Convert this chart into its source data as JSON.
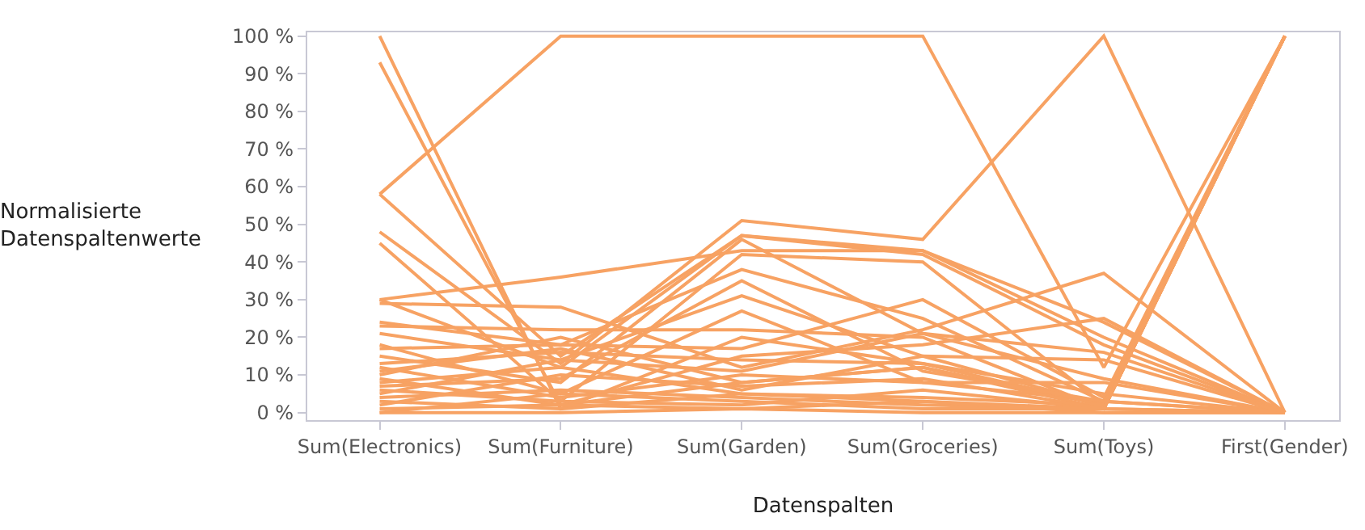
{
  "chart_data": {
    "type": "line",
    "xlabel": "Datenspalten",
    "ylabel": "Normalisierte\nDatenspaltenwerte",
    "categories": [
      "Sum(Electronics)",
      "Sum(Furniture)",
      "Sum(Garden)",
      "Sum(Groceries)",
      "Sum(Toys)",
      "First(Gender)"
    ],
    "ylim": [
      -2,
      101
    ],
    "yticks": [
      {
        "value": 0,
        "label": "0 %"
      },
      {
        "value": 10,
        "label": "10 %"
      },
      {
        "value": 20,
        "label": "20 %"
      },
      {
        "value": 30,
        "label": "30 %"
      },
      {
        "value": 40,
        "label": "40 %"
      },
      {
        "value": 50,
        "label": "50 %"
      },
      {
        "value": 60,
        "label": "60 %"
      },
      {
        "value": 70,
        "label": "70 %"
      },
      {
        "value": 80,
        "label": "80 %"
      },
      {
        "value": 90,
        "label": "90 %"
      },
      {
        "value": 100,
        "label": "100 %"
      }
    ],
    "marker": "none",
    "line_style": "solid",
    "series": [
      {
        "color": "#f7a263",
        "values": [
          58,
          100,
          100,
          100,
          12,
          100
        ]
      },
      {
        "color": "#f7a263",
        "values": [
          100,
          1,
          5,
          3,
          1,
          0
        ]
      },
      {
        "color": "#f7a263",
        "values": [
          93,
          2,
          8,
          12,
          2,
          100
        ]
      },
      {
        "color": "#f7a263",
        "values": [
          58,
          15,
          47,
          43,
          20,
          0
        ]
      },
      {
        "color": "#f7a263",
        "values": [
          48,
          13,
          51,
          46,
          100,
          0
        ]
      },
      {
        "color": "#f7a263",
        "values": [
          45,
          3,
          42,
          40,
          2,
          100
        ]
      },
      {
        "color": "#f7a263",
        "values": [
          30,
          36,
          43,
          43,
          24,
          0
        ]
      },
      {
        "color": "#f7a263",
        "values": [
          29,
          28,
          12,
          22,
          37,
          0
        ]
      },
      {
        "color": "#f7a263",
        "values": [
          30,
          12,
          47,
          42,
          18,
          0
        ]
      },
      {
        "color": "#f7a263",
        "values": [
          24,
          18,
          38,
          25,
          3,
          100
        ]
      },
      {
        "color": "#f7a263",
        "values": [
          23,
          22,
          22,
          20,
          1,
          0
        ]
      },
      {
        "color": "#f7a263",
        "values": [
          21,
          14,
          31,
          15,
          2,
          100
        ]
      },
      {
        "color": "#f7a263",
        "values": [
          18,
          5,
          27,
          8,
          3,
          0
        ]
      },
      {
        "color": "#f7a263",
        "values": [
          17,
          18,
          17,
          30,
          4,
          100
        ]
      },
      {
        "color": "#f7a263",
        "values": [
          15,
          8,
          46,
          21,
          16,
          0
        ]
      },
      {
        "color": "#f7a263",
        "values": [
          13,
          16,
          14,
          13,
          2,
          100
        ]
      },
      {
        "color": "#f7a263",
        "values": [
          12,
          4,
          10,
          8,
          8,
          0
        ]
      },
      {
        "color": "#f7a263",
        "values": [
          10,
          20,
          8,
          12,
          1,
          100
        ]
      },
      {
        "color": "#f7a263",
        "values": [
          9,
          2,
          15,
          18,
          25,
          0
        ]
      },
      {
        "color": "#f7a263",
        "values": [
          8,
          12,
          5,
          4,
          2,
          100
        ]
      },
      {
        "color": "#f7a263",
        "values": [
          7,
          9,
          35,
          11,
          3,
          0
        ]
      },
      {
        "color": "#f7a263",
        "values": [
          6,
          3,
          2,
          6,
          1,
          100
        ]
      },
      {
        "color": "#f7a263",
        "values": [
          5,
          14,
          11,
          21,
          9,
          0
        ]
      },
      {
        "color": "#f7a263",
        "values": [
          4,
          6,
          4,
          2,
          1,
          100
        ]
      },
      {
        "color": "#f7a263",
        "values": [
          3,
          1,
          20,
          13,
          5,
          0
        ]
      },
      {
        "color": "#f7a263",
        "values": [
          2,
          10,
          7,
          9,
          1,
          100
        ]
      },
      {
        "color": "#f7a263",
        "values": [
          1,
          2,
          1,
          3,
          0,
          0
        ]
      },
      {
        "color": "#f7a263",
        "values": [
          0,
          5,
          3,
          1,
          1,
          100
        ]
      },
      {
        "color": "#f7a263",
        "values": [
          0,
          0,
          1,
          0,
          0,
          0
        ]
      },
      {
        "color": "#f7a263",
        "values": [
          11,
          17,
          6,
          15,
          14,
          0
        ]
      }
    ]
  }
}
